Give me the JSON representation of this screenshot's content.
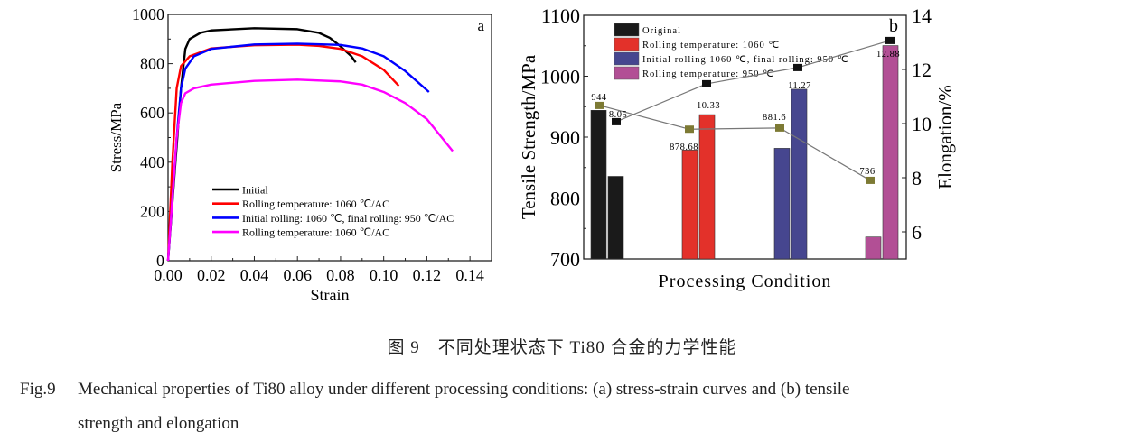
{
  "chart_data": [
    {
      "type": "line",
      "panel_label": "a",
      "xlabel": "Strain",
      "ylabel": "Stress/MPa",
      "xlim": [
        0,
        0.15
      ],
      "ylim": [
        0,
        1000
      ],
      "xticks": [
        "0.00",
        "0.02",
        "0.04",
        "0.06",
        "0.08",
        "0.10",
        "0.12",
        "0.14"
      ],
      "yticks": [
        "0",
        "200",
        "400",
        "600",
        "800",
        "1000"
      ],
      "grid": false,
      "legend_position": "bottom-left",
      "series": [
        {
          "name": "Initial",
          "color": "#000000",
          "points": [
            [
              0,
              0
            ],
            [
              0.006,
              700
            ],
            [
              0.008,
              860
            ],
            [
              0.01,
              900
            ],
            [
              0.015,
              925
            ],
            [
              0.02,
              935
            ],
            [
              0.04,
              944
            ],
            [
              0.06,
              940
            ],
            [
              0.07,
              925
            ],
            [
              0.075,
              905
            ],
            [
              0.08,
              870
            ],
            [
              0.085,
              830
            ],
            [
              0.087,
              805
            ]
          ]
        },
        {
          "name": "Rolling temperature: 1060 ℃/AC",
          "color": "#ff0000",
          "points": [
            [
              0,
              0
            ],
            [
              0.002,
              400
            ],
            [
              0.004,
              700
            ],
            [
              0.006,
              790
            ],
            [
              0.01,
              830
            ],
            [
              0.02,
              862
            ],
            [
              0.04,
              875
            ],
            [
              0.06,
              877
            ],
            [
              0.07,
              872
            ],
            [
              0.08,
              860
            ],
            [
              0.09,
              830
            ],
            [
              0.1,
              775
            ],
            [
              0.107,
              710
            ]
          ]
        },
        {
          "name": "Initial rolling: 1060 ℃, final rolling: 950 ℃/AC",
          "color": "#0000ff",
          "points": [
            [
              0,
              0
            ],
            [
              0.004,
              500
            ],
            [
              0.006,
              700
            ],
            [
              0.008,
              780
            ],
            [
              0.012,
              830
            ],
            [
              0.02,
              860
            ],
            [
              0.04,
              878
            ],
            [
              0.06,
              881
            ],
            [
              0.08,
              876
            ],
            [
              0.09,
              862
            ],
            [
              0.1,
              830
            ],
            [
              0.11,
              770
            ],
            [
              0.121,
              685
            ]
          ]
        },
        {
          "name": "Rolling temperature: 1060 ℃/AC",
          "color": "#ff00ff",
          "points": [
            [
              0,
              0
            ],
            [
              0.004,
              500
            ],
            [
              0.006,
              640
            ],
            [
              0.008,
              680
            ],
            [
              0.012,
              700
            ],
            [
              0.02,
              715
            ],
            [
              0.04,
              730
            ],
            [
              0.06,
              735
            ],
            [
              0.08,
              728
            ],
            [
              0.09,
              715
            ],
            [
              0.1,
              685
            ],
            [
              0.11,
              640
            ],
            [
              0.12,
              575
            ],
            [
              0.132,
              445
            ]
          ]
        }
      ]
    },
    {
      "type": "bar",
      "panel_label": "b",
      "xlabel": "Processing Condition",
      "ylabel": "Tensile Strength/MPa",
      "y2label": "Elongation/%",
      "ylim": [
        700,
        1100
      ],
      "y2lim": [
        5,
        14
      ],
      "yticks": [
        "700",
        "800",
        "900",
        "1000",
        "1100"
      ],
      "y2ticks": [
        "6",
        "8",
        "10",
        "12",
        "14"
      ],
      "legend_position": "top-left",
      "categories": [
        {
          "name": "Original",
          "color": "#1a1a1a"
        },
        {
          "name": "Rolling temperature: 1060 ℃",
          "color": "#e3312a"
        },
        {
          "name": "Initial rolling 1060 ℃, final rolling: 950 ℃",
          "color": "#46468f"
        },
        {
          "name": "Rolling temperature: 950 ℃",
          "color": "#b24f95"
        }
      ],
      "tensile_strength": [
        944,
        878.68,
        881.6,
        736
      ],
      "elongation": [
        8.05,
        10.33,
        11.27,
        12.88
      ],
      "tensile_labels": [
        "944",
        "878.68",
        "881.6",
        "736"
      ],
      "elongation_labels": [
        "8.05",
        "10.33",
        "11.27",
        "12.88"
      ],
      "line_markers": {
        "strength_marker_color": "#7d7a34",
        "elongation_marker_color": "#111111",
        "strength_markers": [
          952,
          913,
          915,
          829
        ],
        "elongation_markers": [
          10.07,
          11.47,
          12.07,
          13.07
        ]
      }
    }
  ],
  "caption": {
    "cn": "图 9　不同处理状态下 Ti80 合金的力学性能",
    "en_label": "Fig.9",
    "en_line1": "Mechanical properties of Ti80 alloy under different processing conditions: (a) stress-strain curves and (b) tensile",
    "en_line2": "strength and elongation"
  }
}
